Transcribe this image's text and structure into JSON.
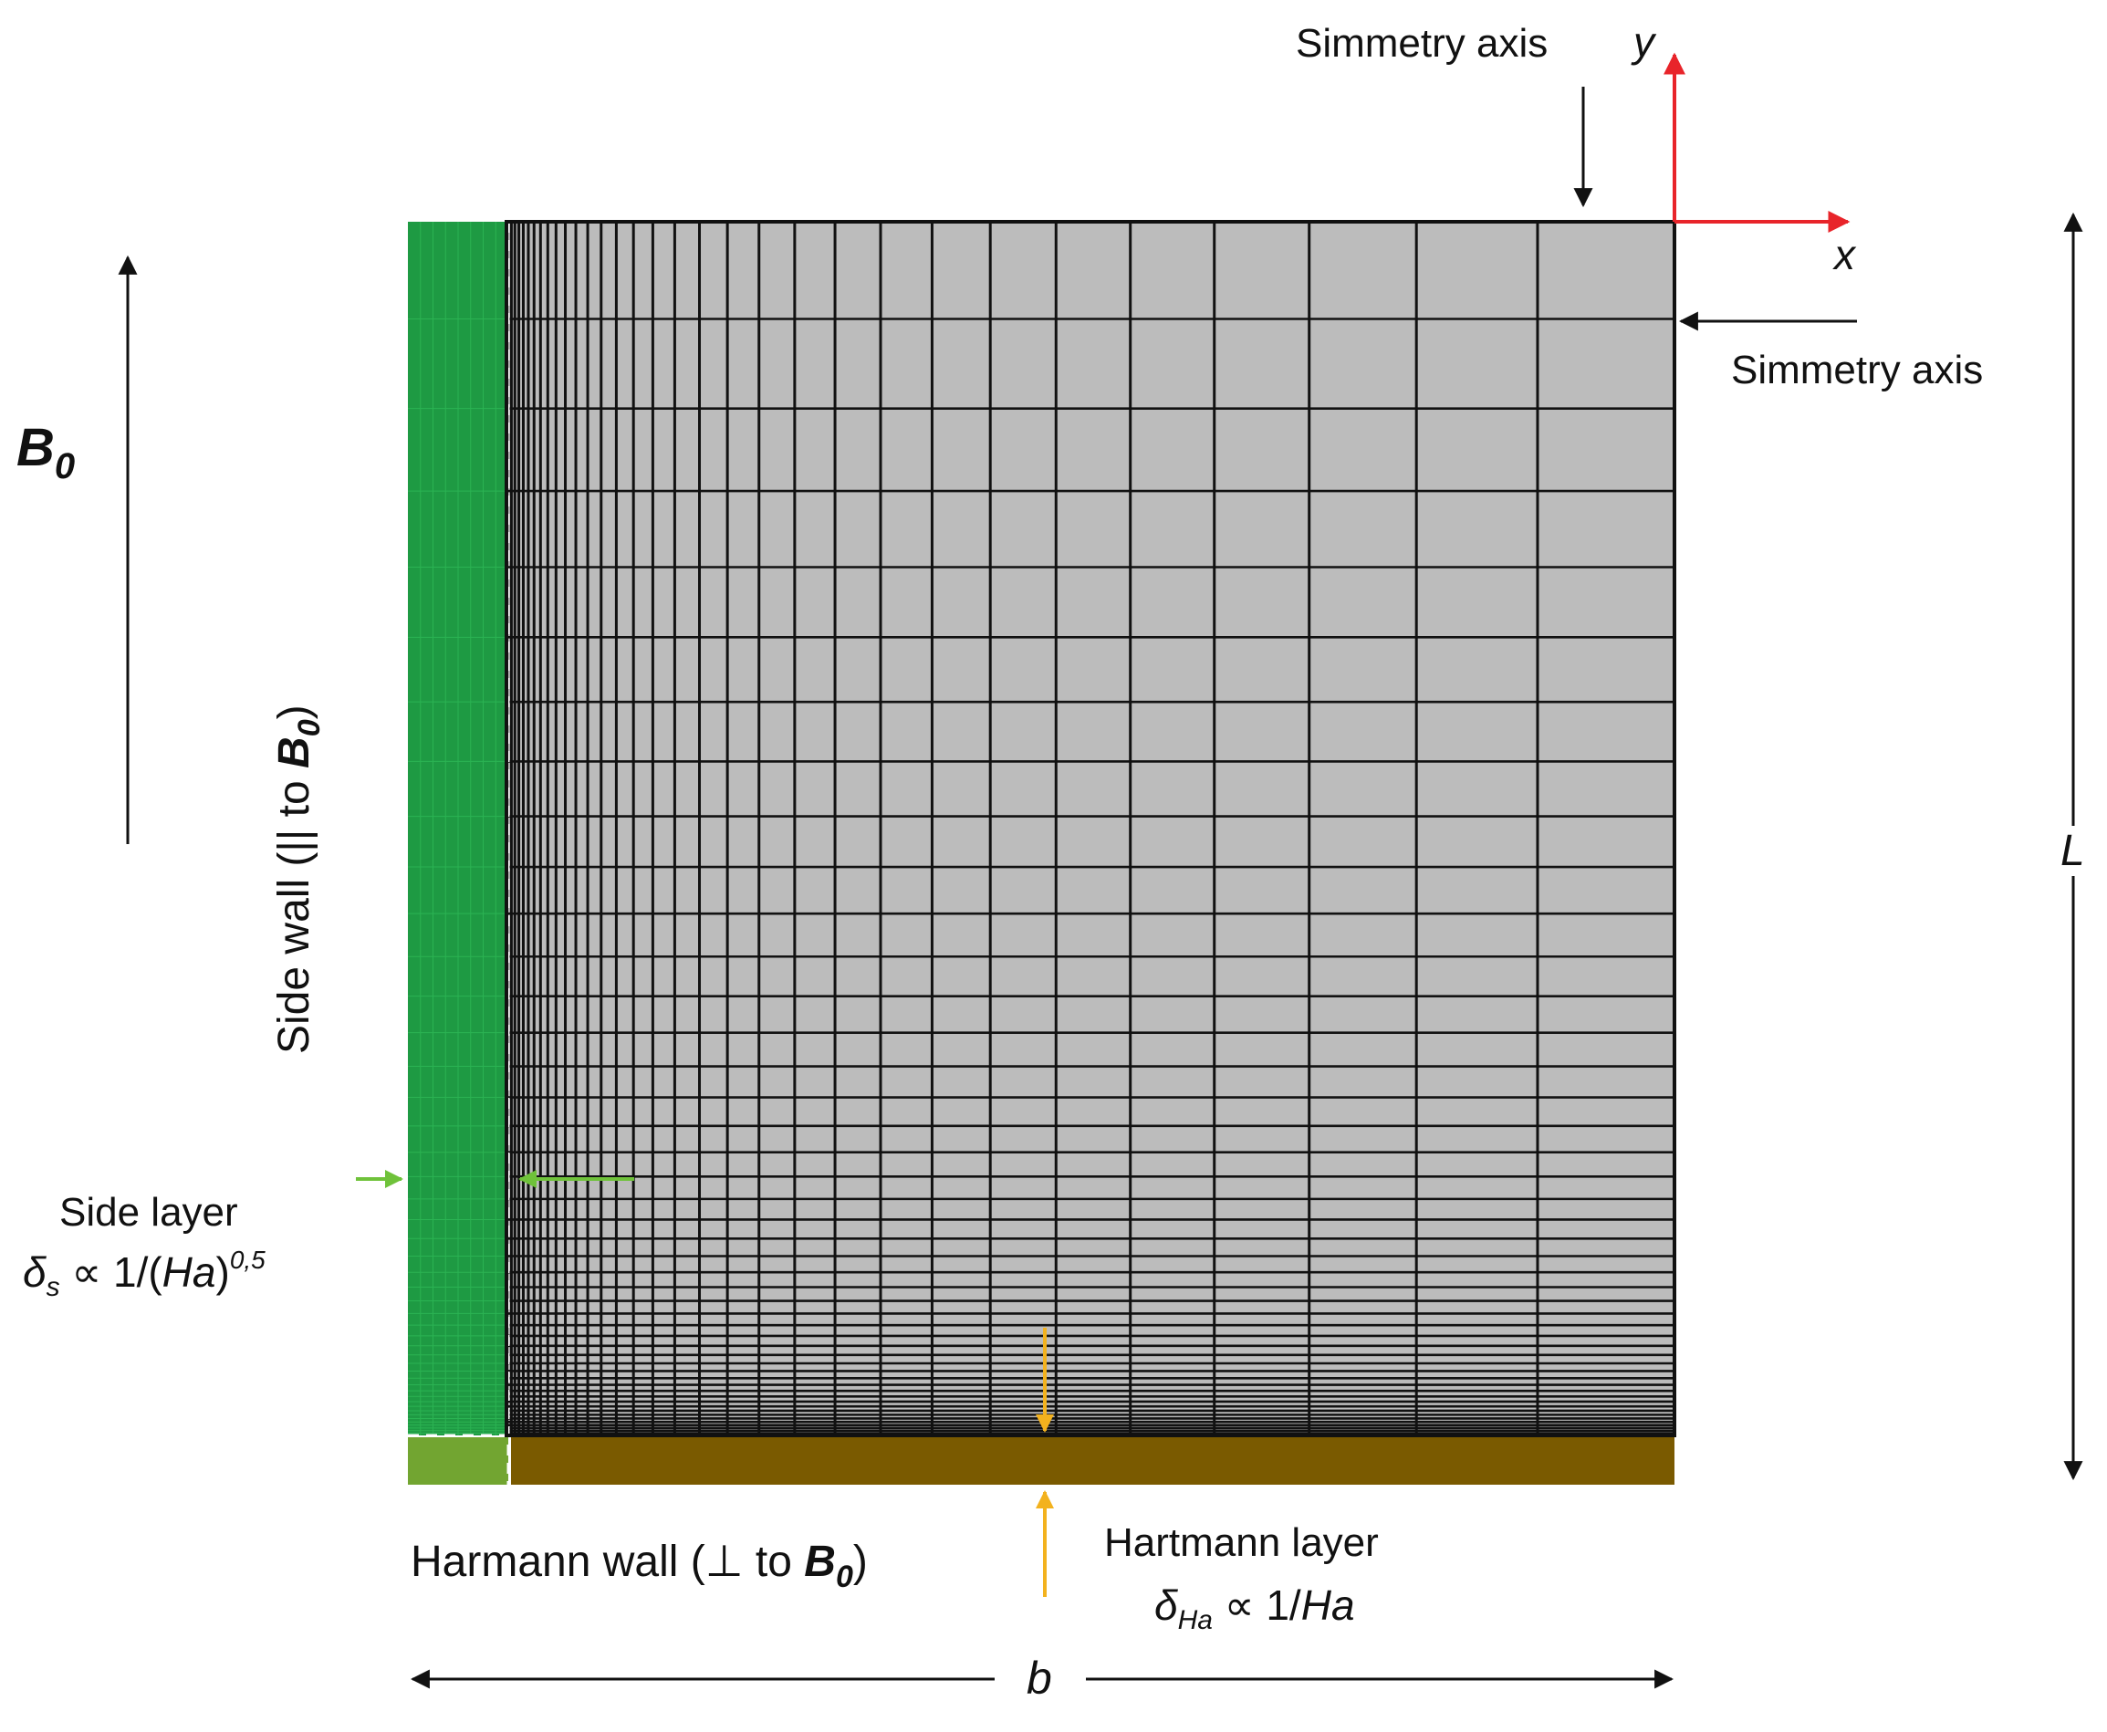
{
  "labels": {
    "symmetry_top": "Simmetry axis",
    "symmetry_right": "Simmetry axis",
    "axis_y": "y",
    "axis_x": "x",
    "field": "B",
    "field_sub": "0",
    "side_wall_prefix": "Side wall (|| to ",
    "side_wall_field": "B",
    "side_wall_sub": "0",
    "side_wall_suffix": ")",
    "side_layer_title": "Side layer",
    "side_layer_delta": "δ",
    "side_layer_delta_sub": "s",
    "side_layer_rel": " ∝ 1/(",
    "side_layer_ha": "Ha",
    "side_layer_close": ")",
    "side_layer_exp": "0,5",
    "hartmann_wall_prefix": "Harmann wall (⊥ to  ",
    "hartmann_wall_field": "B",
    "hartmann_wall_sub": "0",
    "hartmann_wall_suffix": ")",
    "hartmann_layer_title": "Hartmann layer",
    "hartmann_layer_delta": "δ",
    "hartmann_layer_delta_sub": "Ha",
    "hartmann_layer_rel": " ∝ 1/",
    "hartmann_layer_ha": "Ha",
    "dim_L": "L",
    "dim_b": "b"
  },
  "colors": {
    "mesh_fill": "#bcbcbc",
    "mesh_line": "#111111",
    "side_wall": "#1e9a43",
    "hartmann_wall": "#7a5a00",
    "corner": "#72a531",
    "axis_arrow": "#e8242a",
    "side_arrow": "#6fc23a",
    "hartmann_arrow": "#f3b21e",
    "dashed": "#ffffff"
  },
  "mesh": {
    "columns_fine": 20,
    "columns_coarse": 12,
    "rows_fine": 35,
    "rows_coarse": 12
  }
}
